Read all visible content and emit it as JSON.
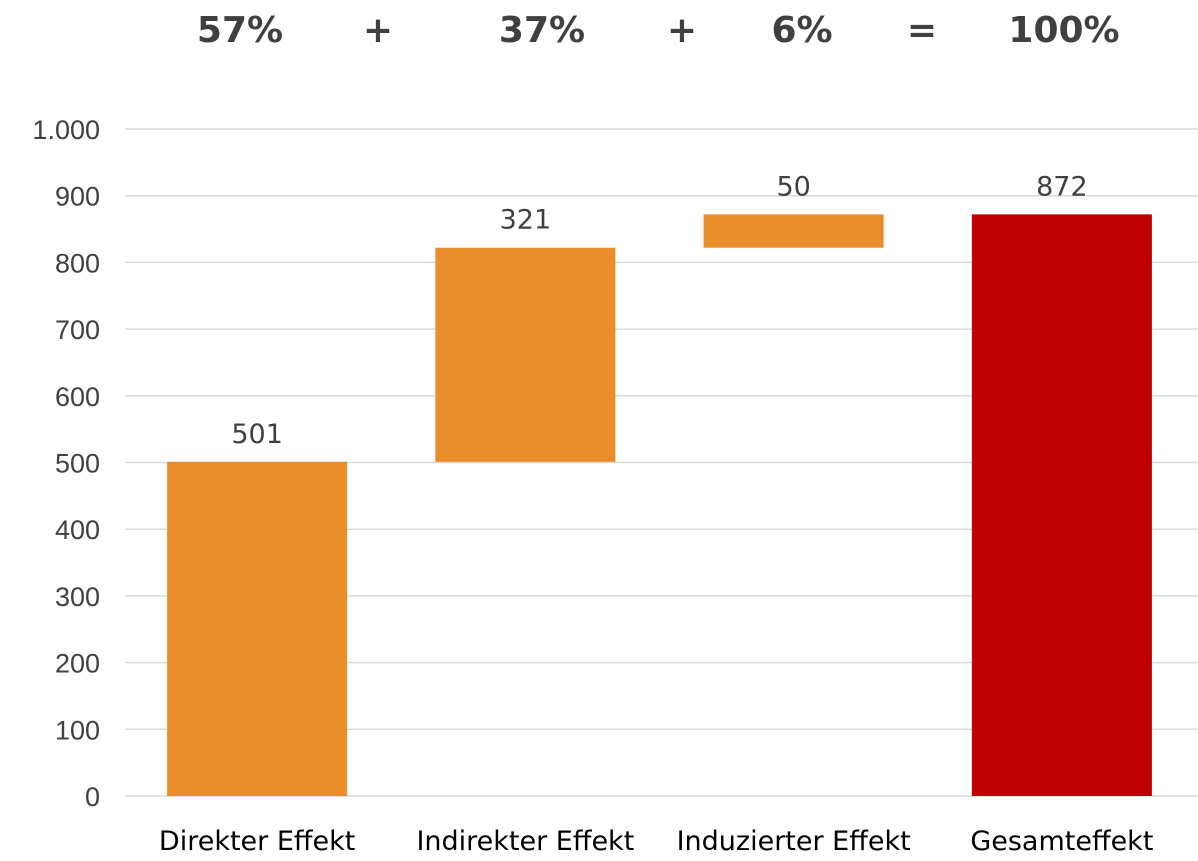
{
  "header": {
    "items": [
      "57%",
      "+",
      "37%",
      "+",
      "6%",
      "=",
      "100%"
    ]
  },
  "colors": {
    "increase": "#e88d2a",
    "total": "#c00000",
    "grid": "#d9d9d9"
  },
  "chart_data": {
    "type": "bar",
    "subtype": "waterfall",
    "categories": [
      "Direkter Effekt",
      "Indirekter Effekt",
      "Induzierter Effekt",
      "Gesamteffekt"
    ],
    "values": [
      501,
      321,
      50,
      872
    ],
    "bases": [
      0,
      501,
      822,
      0
    ],
    "data_labels": [
      "501",
      "321",
      "50",
      "872"
    ],
    "kinds": [
      "increase",
      "increase",
      "increase",
      "total"
    ],
    "ylim": [
      0,
      1000
    ],
    "yticks": [
      0,
      100,
      200,
      300,
      400,
      500,
      600,
      700,
      800,
      900,
      1000
    ],
    "ytick_labels": [
      "0",
      "100",
      "200",
      "300",
      "400",
      "500",
      "600",
      "700",
      "800",
      "900",
      "1.000"
    ],
    "grid": true,
    "legend": "none",
    "title": "",
    "xlabel": "",
    "ylabel": ""
  }
}
